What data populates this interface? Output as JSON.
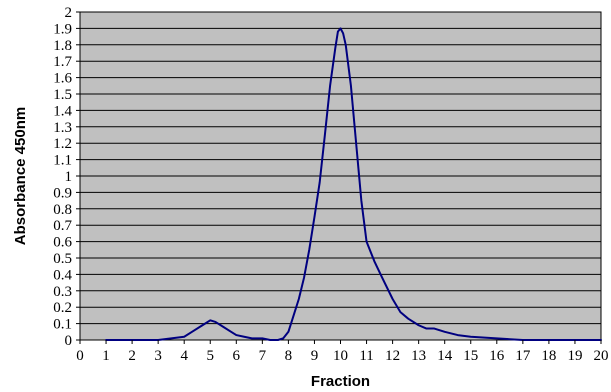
{
  "chart_data": {
    "type": "line",
    "title": "",
    "xlabel": "Fraction",
    "ylabel": "Absorbance 450nm",
    "xlim": [
      0,
      20
    ],
    "ylim": [
      0,
      2
    ],
    "xticks": [
      "0",
      "1",
      "2",
      "3",
      "4",
      "5",
      "6",
      "7",
      "8",
      "9",
      "10",
      "11",
      "12",
      "13",
      "14",
      "15",
      "16",
      "17",
      "18",
      "19",
      "20"
    ],
    "yticks": [
      "0",
      "0.1",
      "0.2",
      "0.3",
      "0.4",
      "0.5",
      "0.6",
      "0.7",
      "0.8",
      "0.9",
      "1",
      "1.1",
      "1.2",
      "1.3",
      "1.4",
      "1.5",
      "1.6",
      "1.7",
      "1.8",
      "1.9",
      "2"
    ],
    "grid": true,
    "legend": "none",
    "colors": {
      "plot_background": "#c0c0c0",
      "gridline": "#000000",
      "series_line": "#000080"
    },
    "series": [
      {
        "x": [
          1,
          2,
          3,
          3.5,
          4,
          4.3,
          4.6,
          4.8,
          5,
          5.2,
          5.5,
          5.8,
          6,
          6.3,
          6.6,
          7,
          7.3,
          7.6,
          7.8,
          8,
          8.2,
          8.4,
          8.6,
          8.8,
          9,
          9.2,
          9.4,
          9.6,
          9.8,
          9.9,
          10,
          10.1,
          10.2,
          10.4,
          10.6,
          10.8,
          11,
          11.3,
          11.6,
          12,
          12.3,
          12.6,
          13,
          13.3,
          13.6,
          14,
          14.5,
          15,
          16,
          17,
          18,
          19,
          20
        ],
        "y": [
          0,
          0,
          0,
          0.01,
          0.02,
          0.05,
          0.08,
          0.1,
          0.12,
          0.11,
          0.08,
          0.05,
          0.03,
          0.02,
          0.01,
          0.01,
          0,
          0,
          0.01,
          0.05,
          0.15,
          0.25,
          0.38,
          0.55,
          0.75,
          0.96,
          1.25,
          1.55,
          1.78,
          1.88,
          1.9,
          1.87,
          1.8,
          1.55,
          1.2,
          0.85,
          0.6,
          0.48,
          0.38,
          0.25,
          0.17,
          0.13,
          0.09,
          0.07,
          0.07,
          0.05,
          0.03,
          0.02,
          0.01,
          0,
          0,
          0,
          0
        ]
      }
    ]
  }
}
